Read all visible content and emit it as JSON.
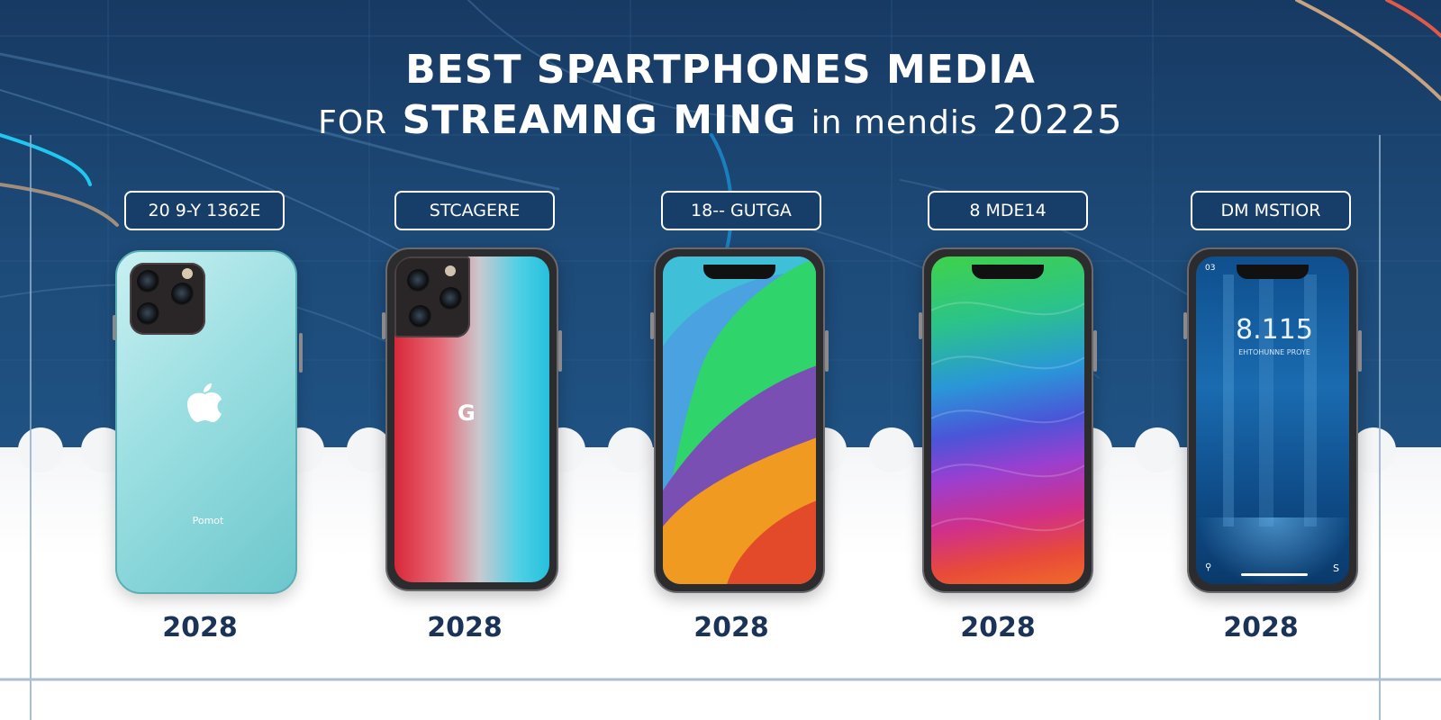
{
  "title": {
    "line1": "BEST SPARTPHONES MEDIA",
    "line2_prefix": "FOR",
    "line2_main": "STREAMNG MING",
    "line2_light": "in mendis",
    "line2_year": "20225"
  },
  "phones": [
    {
      "label": "20 9-Y 1362E",
      "year": "2028",
      "back_text": "Pomot",
      "logo_icon": "apple-logo-icon"
    },
    {
      "label": "STCAGERE",
      "year": "2028",
      "logo_text": "G",
      "logo_icon": "g-logo-icon"
    },
    {
      "label": "18-- GUTGA",
      "year": "2028"
    },
    {
      "label": "8  MDE14",
      "year": "2028"
    },
    {
      "label": "DM  MSTIOR",
      "year": "2028",
      "screen_time": "8.115",
      "screen_sub": "EHTOHUNNE PROYE",
      "screen_status_left": "03",
      "screen_bottom_right": "S"
    }
  ],
  "colors": {
    "navy": "#173a63",
    "year_text": "#1b3357",
    "teal_back": "#8fd8dc"
  }
}
